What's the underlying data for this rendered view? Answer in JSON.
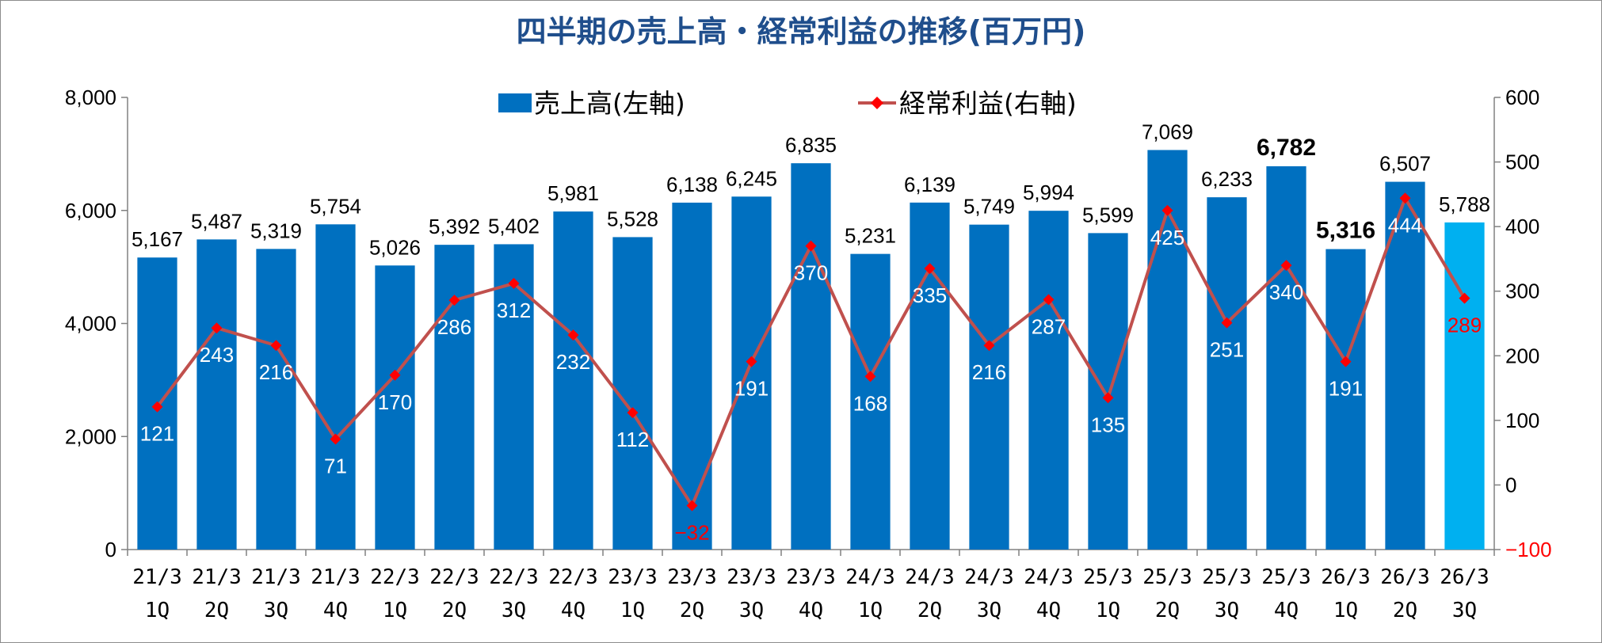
{
  "colors": {
    "bar": "#0070c0",
    "bar_highlight": "#00b0f0",
    "line": "#c0504d",
    "marker": "#ff0000",
    "title": "#1f4e8c",
    "negative_tick": "#ff0000"
  },
  "chart_data": {
    "type": "bar+line",
    "title": "四半期の売上高・経常利益の推移(百万円)",
    "legend_position": "top-center",
    "grid": false,
    "categories": [
      [
        "21/3",
        "1Q"
      ],
      [
        "21/3",
        "2Q"
      ],
      [
        "21/3",
        "3Q"
      ],
      [
        "21/3",
        "4Q"
      ],
      [
        "22/3",
        "1Q"
      ],
      [
        "22/3",
        "2Q"
      ],
      [
        "22/3",
        "3Q"
      ],
      [
        "22/3",
        "4Q"
      ],
      [
        "23/3",
        "1Q"
      ],
      [
        "23/3",
        "2Q"
      ],
      [
        "23/3",
        "3Q"
      ],
      [
        "23/3",
        "4Q"
      ],
      [
        "24/3",
        "1Q"
      ],
      [
        "24/3",
        "2Q"
      ],
      [
        "24/3",
        "3Q"
      ],
      [
        "24/3",
        "4Q"
      ],
      [
        "25/3",
        "1Q"
      ],
      [
        "25/3",
        "2Q"
      ],
      [
        "25/3",
        "3Q"
      ],
      [
        "25/3",
        "4Q"
      ],
      [
        "26/3",
        "1Q"
      ],
      [
        "26/3",
        "2Q"
      ],
      [
        "26/3",
        "3Q"
      ]
    ],
    "series": [
      {
        "name": "売上高(左軸)",
        "type": "bar",
        "axis": "left",
        "values": [
          5167,
          5487,
          5319,
          5754,
          5026,
          5392,
          5402,
          5981,
          5528,
          6138,
          6245,
          6835,
          5231,
          6139,
          5749,
          5994,
          5599,
          7069,
          6233,
          6782,
          5316,
          6507,
          5788
        ],
        "labels": [
          "5,167",
          "5,487",
          "5,319",
          "5,754",
          "5,026",
          "5,392",
          "5,402",
          "5,981",
          "5,528",
          "6,138",
          "6,245",
          "6,835",
          "5,231",
          "6,139",
          "5,749",
          "5,994",
          "5,599",
          "7,069",
          "6,233",
          "6,782",
          "5,316",
          "6,507",
          "5,788"
        ],
        "bold_indices": [
          19,
          20
        ],
        "highlight_index": 22
      },
      {
        "name": "経常利益(右軸)",
        "type": "line",
        "axis": "right",
        "values": [
          121,
          243,
          216,
          71,
          170,
          286,
          312,
          232,
          112,
          -32,
          191,
          370,
          168,
          335,
          216,
          287,
          135,
          425,
          251,
          340,
          191,
          444,
          289
        ],
        "labels": [
          "121",
          "243",
          "216",
          "71",
          "170",
          "286",
          "312",
          "232",
          "112",
          "−32",
          "191",
          "370",
          "168",
          "335",
          "216",
          "287",
          "135",
          "425",
          "251",
          "340",
          "191",
          "444",
          "289"
        ],
        "red_label_indices": [
          9,
          22
        ]
      }
    ],
    "y_left": {
      "min": 0,
      "max": 8000,
      "ticks": [
        0,
        2000,
        4000,
        6000,
        8000
      ],
      "tick_labels": [
        "0",
        "2,000",
        "4,000",
        "6,000",
        "8,000"
      ]
    },
    "y_right": {
      "min": -100,
      "max": 600,
      "ticks": [
        -100,
        0,
        100,
        200,
        300,
        400,
        500,
        600
      ],
      "tick_labels": [
        "−100",
        "0",
        "100",
        "200",
        "300",
        "400",
        "500",
        "600"
      ]
    }
  }
}
